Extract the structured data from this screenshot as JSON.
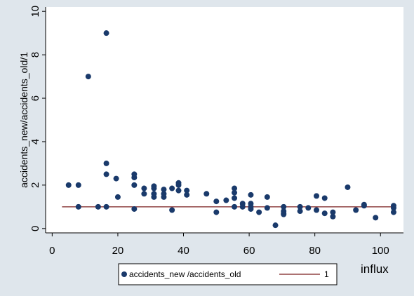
{
  "chart_data": {
    "type": "scatter",
    "title": "",
    "xlabel": "influx",
    "ylabel": "accidents_new/accidents_old/1",
    "xlim": [
      -2,
      107
    ],
    "ylim": [
      -0.2,
      10.2
    ],
    "xticks": [
      0,
      20,
      40,
      60,
      80,
      100
    ],
    "yticks": [
      0,
      2,
      4,
      6,
      8,
      10
    ],
    "grid": "none",
    "legend_position": "bottom",
    "series": [
      {
        "name": "accidents_new /accidents_old",
        "kind": "scatter",
        "color": "#1a3a6b",
        "points": [
          [
            5,
            2.0
          ],
          [
            8,
            2.0
          ],
          [
            8,
            1.0
          ],
          [
            11,
            7.0
          ],
          [
            14,
            1.0
          ],
          [
            16.5,
            9.0
          ],
          [
            16.5,
            3.0
          ],
          [
            16.5,
            2.5
          ],
          [
            16.5,
            1.0
          ],
          [
            19.5,
            2.3
          ],
          [
            20,
            1.45
          ],
          [
            25,
            2.5
          ],
          [
            25,
            2.35
          ],
          [
            25,
            2.0
          ],
          [
            25,
            0.9
          ],
          [
            28,
            1.85
          ],
          [
            28,
            1.6
          ],
          [
            31,
            1.95
          ],
          [
            31,
            1.85
          ],
          [
            31,
            1.6
          ],
          [
            31,
            1.45
          ],
          [
            34,
            1.8
          ],
          [
            34,
            1.6
          ],
          [
            34,
            1.45
          ],
          [
            36.5,
            1.85
          ],
          [
            36.5,
            0.85
          ],
          [
            38.5,
            2.1
          ],
          [
            38.5,
            2.0
          ],
          [
            38.5,
            1.75
          ],
          [
            41,
            1.75
          ],
          [
            41,
            1.55
          ],
          [
            47,
            1.6
          ],
          [
            50,
            1.25
          ],
          [
            50,
            0.75
          ],
          [
            53,
            1.3
          ],
          [
            55.5,
            1.85
          ],
          [
            55.5,
            1.65
          ],
          [
            55.5,
            1.4
          ],
          [
            55.5,
            1.0
          ],
          [
            58,
            1.15
          ],
          [
            58,
            1.0
          ],
          [
            60.5,
            1.55
          ],
          [
            60.5,
            1.15
          ],
          [
            60.5,
            1.0
          ],
          [
            60.5,
            0.9
          ],
          [
            63,
            0.75
          ],
          [
            65.5,
            1.45
          ],
          [
            65.5,
            0.95
          ],
          [
            68,
            0.15
          ],
          [
            70.5,
            1.0
          ],
          [
            70.5,
            0.8
          ],
          [
            70.5,
            0.7
          ],
          [
            70.5,
            0.65
          ],
          [
            75.5,
            1.0
          ],
          [
            75.5,
            0.8
          ],
          [
            78,
            0.95
          ],
          [
            80.5,
            1.5
          ],
          [
            80.5,
            0.85
          ],
          [
            83,
            1.4
          ],
          [
            83,
            0.7
          ],
          [
            85.5,
            0.75
          ],
          [
            85.5,
            0.55
          ],
          [
            90,
            1.9
          ],
          [
            92.5,
            0.85
          ],
          [
            95,
            1.1
          ],
          [
            95,
            1.05
          ],
          [
            98.5,
            0.5
          ],
          [
            104,
            1.05
          ],
          [
            104,
            0.95
          ],
          [
            104,
            0.75
          ]
        ]
      },
      {
        "name": "1",
        "kind": "line",
        "color": "#7a1f1f",
        "points": [
          [
            3,
            1
          ],
          [
            104.5,
            1
          ]
        ]
      }
    ]
  }
}
